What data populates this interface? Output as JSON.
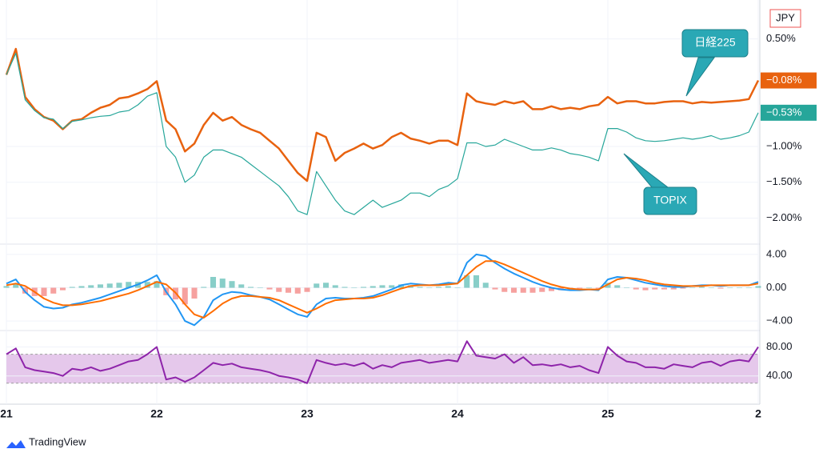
{
  "currency": "JPY",
  "brand": "TradingView",
  "chart_data": [
    {
      "type": "line",
      "categories": [
        "21",
        null,
        null,
        null,
        null,
        null,
        null,
        null,
        null,
        null,
        null,
        null,
        null,
        null,
        null,
        null,
        "22",
        null,
        null,
        null,
        null,
        null,
        null,
        null,
        null,
        null,
        null,
        null,
        null,
        null,
        null,
        null,
        "23",
        null,
        null,
        null,
        null,
        null,
        null,
        null,
        null,
        null,
        null,
        null,
        null,
        null,
        null,
        null,
        "24",
        null,
        null,
        null,
        null,
        null,
        null,
        null,
        null,
        null,
        null,
        null,
        null,
        null,
        null,
        null,
        "25",
        null,
        null,
        null,
        null,
        null,
        null,
        null,
        null,
        null,
        null,
        null,
        null,
        null,
        null,
        null,
        "2"
      ],
      "ylim": [
        -2.34,
        1.02
      ],
      "yticks": [
        {
          "value": 0.5,
          "label": "0.50%"
        },
        {
          "value": -1.0,
          "label": "−1.00%"
        },
        {
          "value": -1.5,
          "label": "−1.50%"
        },
        {
          "value": -2.0,
          "label": "−2.00%"
        }
      ],
      "grid": true,
      "annotations": [
        "日経225",
        "TOPIX"
      ],
      "series": [
        {
          "name": "日経225",
          "color": "#e8620f",
          "width": 2.5,
          "tag": {
            "value": -0.08,
            "label": "−0.08%"
          },
          "values": [
            0.0,
            0.36,
            -0.31,
            -0.48,
            -0.59,
            -0.64,
            -0.76,
            -0.64,
            -0.62,
            -0.53,
            -0.46,
            -0.42,
            -0.33,
            -0.31,
            -0.26,
            -0.2,
            -0.09,
            -0.64,
            -0.76,
            -1.07,
            -0.96,
            -0.7,
            -0.53,
            -0.64,
            -0.59,
            -0.7,
            -0.76,
            -0.81,
            -0.92,
            -1.03,
            -1.2,
            -1.37,
            -1.48,
            -0.81,
            -0.87,
            -1.2,
            -1.09,
            -1.03,
            -0.96,
            -1.03,
            -0.98,
            -0.87,
            -0.81,
            -0.89,
            -0.92,
            -0.96,
            -0.92,
            -0.92,
            -0.98,
            -0.26,
            -0.37,
            -0.4,
            -0.42,
            -0.37,
            -0.4,
            -0.37,
            -0.48,
            -0.48,
            -0.44,
            -0.48,
            -0.46,
            -0.48,
            -0.44,
            -0.42,
            -0.31,
            -0.4,
            -0.37,
            -0.37,
            -0.4,
            -0.4,
            -0.38,
            -0.37,
            -0.37,
            -0.4,
            -0.38,
            -0.39,
            -0.38,
            -0.37,
            -0.36,
            -0.34,
            -0.08
          ]
        },
        {
          "name": "TOPIX",
          "color": "#26a69a",
          "width": 1.2,
          "tag": {
            "value": -0.53,
            "label": "−0.53%"
          },
          "values": [
            0.0,
            0.3,
            -0.35,
            -0.5,
            -0.6,
            -0.62,
            -0.75,
            -0.65,
            -0.63,
            -0.6,
            -0.58,
            -0.57,
            -0.52,
            -0.5,
            -0.42,
            -0.3,
            -0.25,
            -1.0,
            -1.15,
            -1.5,
            -1.4,
            -1.15,
            -1.05,
            -1.05,
            -1.1,
            -1.15,
            -1.25,
            -1.35,
            -1.45,
            -1.55,
            -1.7,
            -1.9,
            -1.95,
            -1.35,
            -1.55,
            -1.75,
            -1.9,
            -1.95,
            -1.85,
            -1.75,
            -1.85,
            -1.8,
            -1.75,
            -1.65,
            -1.65,
            -1.7,
            -1.6,
            -1.55,
            -1.45,
            -0.95,
            -0.95,
            -1.0,
            -0.98,
            -0.9,
            -0.95,
            -1.0,
            -1.05,
            -1.05,
            -1.02,
            -1.05,
            -1.1,
            -1.12,
            -1.15,
            -1.2,
            -0.75,
            -0.75,
            -0.8,
            -0.88,
            -0.92,
            -0.93,
            -0.92,
            -0.9,
            -0.88,
            -0.9,
            -0.88,
            -0.85,
            -0.9,
            -0.88,
            -0.85,
            -0.8,
            -0.53
          ]
        }
      ]
    },
    {
      "type": "line",
      "ylim": [
        -4.95,
        5.05
      ],
      "yticks": [
        {
          "value": 4,
          "label": "4.00"
        },
        {
          "value": 0,
          "label": "0.00"
        },
        {
          "value": -4,
          "label": "−4.00"
        }
      ],
      "series": [
        {
          "kind": "bar",
          "color_up": "#26a69a",
          "color_down": "#ef5350",
          "values": [
            0.2,
            0.5,
            -0.7,
            -1.0,
            -1.0,
            -0.7,
            -0.3,
            0.1,
            0.2,
            0.3,
            0.4,
            0.5,
            0.6,
            0.7,
            0.7,
            0.7,
            0.8,
            -0.9,
            -1.4,
            -2.0,
            -1.3,
            0.1,
            1.3,
            1.1,
            0.8,
            0.4,
            0.1,
            0.0,
            -0.2,
            -0.5,
            -0.6,
            -0.7,
            -0.5,
            0.5,
            0.6,
            0.3,
            0.1,
            0.0,
            0.1,
            0.2,
            0.3,
            0.3,
            0.4,
            0.3,
            0.1,
            0.0,
            0.1,
            0.2,
            0.0,
            1.5,
            1.5,
            0.6,
            -0.2,
            -0.5,
            -0.6,
            -0.6,
            -0.6,
            -0.5,
            -0.4,
            -0.3,
            -0.2,
            -0.1,
            0.0,
            -0.1,
            0.6,
            0.3,
            0.0,
            -0.2,
            -0.3,
            -0.2,
            -0.2,
            -0.2,
            -0.1,
            0.0,
            0.1,
            0.0,
            -0.1,
            0.0,
            0.0,
            0.0,
            0.2
          ]
        },
        {
          "kind": "line",
          "color": "#2196f3",
          "values": [
            0.5,
            1.0,
            -0.5,
            -1.5,
            -2.3,
            -2.5,
            -2.4,
            -2.0,
            -1.8,
            -1.5,
            -1.2,
            -0.8,
            -0.4,
            0.0,
            0.4,
            0.9,
            1.5,
            -0.5,
            -2.0,
            -4.0,
            -4.5,
            -3.5,
            -1.5,
            -0.8,
            -0.5,
            -0.6,
            -0.9,
            -1.1,
            -1.4,
            -2.0,
            -2.6,
            -3.2,
            -3.5,
            -2.0,
            -1.3,
            -1.2,
            -1.3,
            -1.3,
            -1.2,
            -1.0,
            -0.6,
            -0.2,
            0.3,
            0.5,
            0.4,
            0.3,
            0.4,
            0.6,
            0.5,
            3.0,
            4.0,
            3.8,
            3.0,
            2.3,
            1.7,
            1.2,
            0.7,
            0.3,
            0.0,
            -0.2,
            -0.3,
            -0.3,
            -0.2,
            -0.3,
            1.0,
            1.3,
            1.2,
            0.9,
            0.6,
            0.4,
            0.2,
            0.1,
            0.1,
            0.2,
            0.3,
            0.3,
            0.2,
            0.3,
            0.3,
            0.3,
            0.7
          ]
        },
        {
          "kind": "line",
          "color": "#ff6d00",
          "values": [
            0.3,
            0.5,
            0.2,
            -0.5,
            -1.3,
            -1.8,
            -2.1,
            -2.1,
            -2.0,
            -1.8,
            -1.6,
            -1.3,
            -1.0,
            -0.7,
            -0.3,
            0.2,
            0.7,
            0.4,
            -0.6,
            -2.0,
            -3.2,
            -3.6,
            -2.8,
            -1.9,
            -1.3,
            -1.0,
            -1.0,
            -1.1,
            -1.2,
            -1.5,
            -2.0,
            -2.5,
            -3.0,
            -2.5,
            -1.9,
            -1.5,
            -1.4,
            -1.3,
            -1.3,
            -1.2,
            -0.9,
            -0.5,
            -0.1,
            0.2,
            0.3,
            0.3,
            0.3,
            0.4,
            0.5,
            1.5,
            2.5,
            3.2,
            3.2,
            2.8,
            2.3,
            1.8,
            1.3,
            0.8,
            0.4,
            0.1,
            -0.1,
            -0.2,
            -0.2,
            -0.2,
            0.4,
            1.0,
            1.2,
            1.1,
            0.9,
            0.6,
            0.4,
            0.3,
            0.2,
            0.2,
            0.2,
            0.3,
            0.3,
            0.3,
            0.3,
            0.3,
            0.5
          ]
        }
      ]
    },
    {
      "type": "line",
      "ylim": [
        3.2,
        100.5
      ],
      "yticks": [
        {
          "value": 80,
          "label": "80.00"
        },
        {
          "value": 40,
          "label": "40.00"
        }
      ],
      "band": [
        30,
        70
      ],
      "band_color": "#e1bee7",
      "series": [
        {
          "kind": "line",
          "color": "#8e24aa",
          "values": [
            70,
            78,
            52,
            48,
            46,
            44,
            40,
            50,
            48,
            52,
            47,
            50,
            55,
            60,
            62,
            70,
            80,
            35,
            38,
            32,
            38,
            48,
            58,
            55,
            57,
            52,
            50,
            48,
            45,
            40,
            38,
            35,
            30,
            62,
            58,
            55,
            57,
            54,
            58,
            50,
            55,
            52,
            58,
            60,
            62,
            58,
            60,
            62,
            60,
            88,
            68,
            66,
            64,
            70,
            58,
            66,
            55,
            56,
            54,
            56,
            52,
            54,
            48,
            44,
            80,
            68,
            60,
            58,
            52,
            52,
            50,
            56,
            54,
            52,
            58,
            60,
            54,
            60,
            62,
            60,
            80
          ]
        }
      ]
    }
  ]
}
